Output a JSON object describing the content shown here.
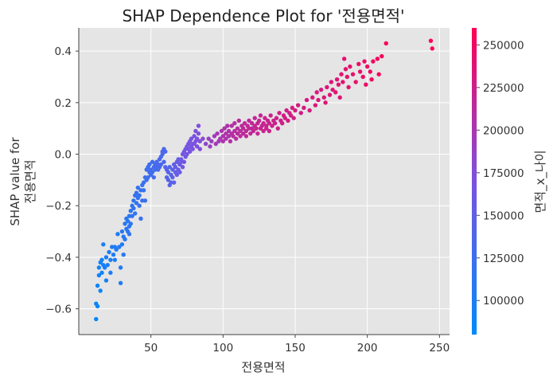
{
  "chart_data": {
    "type": "scatter",
    "title": "SHAP Dependence Plot for '전용면적'",
    "xlabel": "전용면적",
    "ylabel_lines": [
      "SHAP value for",
      "전용면적"
    ],
    "xlim": [
      0,
      257
    ],
    "ylim": [
      -0.7,
      0.49
    ],
    "x_ticks": [
      50,
      100,
      150,
      200,
      250
    ],
    "y_ticks": [
      {
        "value": 0.4,
        "label": "0.4"
      },
      {
        "value": 0.2,
        "label": "0.2"
      },
      {
        "value": 0.0,
        "label": "0.0"
      },
      {
        "value": -0.2,
        "label": "−0.2"
      },
      {
        "value": -0.4,
        "label": "−0.4"
      },
      {
        "value": -0.6,
        "label": "−0.6"
      }
    ],
    "colorbar": {
      "label": "면적_x_나이",
      "range": [
        80000,
        260000
      ],
      "ticks": [
        100000,
        125000,
        150000,
        175000,
        200000,
        225000,
        250000
      ],
      "colors": [
        "#008afb",
        "#7c52e0",
        "#ff0052"
      ]
    },
    "point_color": {
      "low": "#008afb",
      "mid": "#7c52e0",
      "high": "#ff0052"
    },
    "grid": true,
    "background": "#e5e5e5",
    "points": [
      [
        12,
        -0.64,
        85000
      ],
      [
        12,
        -0.58,
        87000
      ],
      [
        13,
        -0.59,
        88000
      ],
      [
        13,
        -0.51,
        90000
      ],
      [
        14,
        -0.47,
        91000
      ],
      [
        14,
        -0.44,
        92000
      ],
      [
        15,
        -0.42,
        92000
      ],
      [
        15,
        -0.53,
        93000
      ],
      [
        16,
        -0.46,
        94000
      ],
      [
        16,
        -0.41,
        95000
      ],
      [
        17,
        -0.35,
        96000
      ],
      [
        17,
        -0.43,
        96000
      ],
      [
        18,
        -0.44,
        97000
      ],
      [
        19,
        -0.4,
        98000
      ],
      [
        19,
        -0.49,
        98000
      ],
      [
        20,
        -0.43,
        99000
      ],
      [
        21,
        -0.38,
        100000
      ],
      [
        22,
        -0.41,
        100000
      ],
      [
        22,
        -0.46,
        101000
      ],
      [
        23,
        -0.36,
        102000
      ],
      [
        24,
        -0.39,
        102000
      ],
      [
        25,
        -0.36,
        103000
      ],
      [
        25,
        -0.41,
        103000
      ],
      [
        26,
        -0.37,
        104000
      ],
      [
        27,
        -0.31,
        105000
      ],
      [
        28,
        -0.36,
        105000
      ],
      [
        29,
        -0.44,
        106000
      ],
      [
        29,
        -0.5,
        106000
      ],
      [
        30,
        -0.35,
        107000
      ],
      [
        30,
        -0.3,
        107000
      ],
      [
        31,
        -0.32,
        108000
      ],
      [
        31,
        -0.39,
        108000
      ],
      [
        32,
        -0.27,
        109000
      ],
      [
        32,
        -0.33,
        109000
      ],
      [
        33,
        -0.29,
        110000
      ],
      [
        33,
        -0.25,
        110000
      ],
      [
        34,
        -0.3,
        111000
      ],
      [
        34,
        -0.26,
        111000
      ],
      [
        35,
        -0.24,
        112000
      ],
      [
        35,
        -0.28,
        112000
      ],
      [
        35,
        -0.31,
        112000
      ],
      [
        36,
        -0.22,
        113000
      ],
      [
        36,
        -0.27,
        113000
      ],
      [
        37,
        -0.2,
        114000
      ],
      [
        37,
        -0.24,
        114000
      ],
      [
        38,
        -0.21,
        115000
      ],
      [
        38,
        -0.18,
        115000
      ],
      [
        39,
        -0.16,
        116000
      ],
      [
        39,
        -0.23,
        116000
      ],
      [
        40,
        -0.19,
        117000
      ],
      [
        40,
        -0.15,
        117000
      ],
      [
        41,
        -0.17,
        118000
      ],
      [
        41,
        -0.13,
        118000
      ],
      [
        42,
        -0.2,
        119000
      ],
      [
        42,
        -0.16,
        119000
      ],
      [
        43,
        -0.14,
        120000
      ],
      [
        43,
        -0.25,
        120000
      ],
      [
        44,
        -0.12,
        121000
      ],
      [
        44,
        -0.18,
        121000
      ],
      [
        45,
        -0.14,
        122000
      ],
      [
        45,
        -0.11,
        122000
      ],
      [
        46,
        -0.09,
        123000
      ],
      [
        46,
        -0.18,
        123000
      ],
      [
        47,
        -0.06,
        124000
      ],
      [
        47,
        -0.1,
        124000
      ],
      [
        48,
        -0.05,
        125000
      ],
      [
        48,
        -0.09,
        125000
      ],
      [
        49,
        -0.07,
        126000
      ],
      [
        49,
        -0.04,
        126000
      ],
      [
        50,
        -0.06,
        127000
      ],
      [
        50,
        -0.08,
        127000
      ],
      [
        51,
        -0.03,
        128000
      ],
      [
        51,
        -0.07,
        128000
      ],
      [
        52,
        -0.05,
        129000
      ],
      [
        52,
        -0.09,
        129000
      ],
      [
        53,
        -0.04,
        130000
      ],
      [
        53,
        -0.06,
        130000
      ],
      [
        54,
        -0.05,
        131000
      ],
      [
        54,
        -0.03,
        131000
      ],
      [
        55,
        -0.04,
        132000
      ],
      [
        55,
        -0.06,
        132000
      ],
      [
        56,
        -0.02,
        133000
      ],
      [
        56,
        -0.05,
        133000
      ],
      [
        57,
        -0.01,
        134000
      ],
      [
        57,
        -0.04,
        134000
      ],
      [
        58,
        0.0,
        135000
      ],
      [
        58,
        0.01,
        135000
      ],
      [
        59,
        0.02,
        136000
      ],
      [
        59,
        -0.03,
        136000
      ],
      [
        60,
        -0.05,
        137000
      ],
      [
        60,
        0.01,
        137000
      ],
      [
        61,
        -0.06,
        139000
      ],
      [
        61,
        -0.09,
        139000
      ],
      [
        62,
        -0.07,
        141000
      ],
      [
        62,
        -0.1,
        141000
      ],
      [
        63,
        -0.05,
        143000
      ],
      [
        63,
        -0.12,
        143000
      ],
      [
        64,
        -0.08,
        145000
      ],
      [
        64,
        -0.11,
        145000
      ],
      [
        65,
        -0.06,
        147000
      ],
      [
        65,
        -0.09,
        147000
      ],
      [
        66,
        -0.04,
        149000
      ],
      [
        66,
        -0.11,
        149000
      ],
      [
        67,
        -0.07,
        151000
      ],
      [
        67,
        -0.05,
        151000
      ],
      [
        68,
        -0.03,
        153000
      ],
      [
        68,
        -0.08,
        153000
      ],
      [
        69,
        -0.06,
        155000
      ],
      [
        69,
        -0.02,
        155000
      ],
      [
        70,
        -0.04,
        157000
      ],
      [
        70,
        -0.07,
        157000
      ],
      [
        71,
        -0.02,
        159000
      ],
      [
        71,
        -0.03,
        159000
      ],
      [
        72,
        0.0,
        161000
      ],
      [
        72,
        -0.05,
        161000
      ],
      [
        73,
        0.01,
        163000
      ],
      [
        73,
        -0.03,
        163000
      ],
      [
        74,
        0.02,
        164000
      ],
      [
        74,
        -0.01,
        164000
      ],
      [
        75,
        0.03,
        165000
      ],
      [
        75,
        0.0,
        165000
      ],
      [
        76,
        0.02,
        166000
      ],
      [
        76,
        0.04,
        166000
      ],
      [
        77,
        0.01,
        167000
      ],
      [
        77,
        0.05,
        167000
      ],
      [
        78,
        0.03,
        168000
      ],
      [
        78,
        0.06,
        168000
      ],
      [
        79,
        0.04,
        169000
      ],
      [
        79,
        0.02,
        169000
      ],
      [
        80,
        0.07,
        170000
      ],
      [
        80,
        0.04,
        170000
      ],
      [
        81,
        0.05,
        171000
      ],
      [
        81,
        0.09,
        171000
      ],
      [
        82,
        0.06,
        172000
      ],
      [
        82,
        0.03,
        172000
      ],
      [
        83,
        0.08,
        173000
      ],
      [
        83,
        0.11,
        173000
      ],
      [
        84,
        0.05,
        174000
      ],
      [
        84,
        0.02,
        174000
      ],
      [
        86,
        0.06,
        180000
      ],
      [
        88,
        0.04,
        184000
      ],
      [
        90,
        0.06,
        187000
      ],
      [
        91,
        0.03,
        189000
      ],
      [
        92,
        0.05,
        191000
      ],
      [
        94,
        0.07,
        194000
      ],
      [
        95,
        0.04,
        196000
      ],
      [
        96,
        0.08,
        198000
      ],
      [
        97,
        0.05,
        199000
      ],
      [
        98,
        0.06,
        200000
      ],
      [
        99,
        0.09,
        201000
      ],
      [
        100,
        0.07,
        202000
      ],
      [
        100,
        0.05,
        202000
      ],
      [
        101,
        0.1,
        203000
      ],
      [
        102,
        0.06,
        204000
      ],
      [
        102,
        0.08,
        204000
      ],
      [
        103,
        0.11,
        205000
      ],
      [
        104,
        0.07,
        206000
      ],
      [
        104,
        0.09,
        206000
      ],
      [
        105,
        0.05,
        207000
      ],
      [
        106,
        0.08,
        208000
      ],
      [
        106,
        0.11,
        208000
      ],
      [
        107,
        0.07,
        209000
      ],
      [
        108,
        0.12,
        210000
      ],
      [
        108,
        0.09,
        210000
      ],
      [
        109,
        0.06,
        211000
      ],
      [
        110,
        0.1,
        212000
      ],
      [
        110,
        0.08,
        212000
      ],
      [
        111,
        0.13,
        213000
      ],
      [
        112,
        0.09,
        213000
      ],
      [
        112,
        0.07,
        213000
      ],
      [
        113,
        0.11,
        214000
      ],
      [
        114,
        0.08,
        214000
      ],
      [
        114,
        0.1,
        214000
      ],
      [
        115,
        0.12,
        215000
      ],
      [
        116,
        0.09,
        215000
      ],
      [
        116,
        0.07,
        215000
      ],
      [
        117,
        0.11,
        216000
      ],
      [
        118,
        0.1,
        216000
      ],
      [
        118,
        0.13,
        216000
      ],
      [
        119,
        0.08,
        217000
      ],
      [
        120,
        0.12,
        217000
      ],
      [
        120,
        0.1,
        217000
      ],
      [
        121,
        0.09,
        218000
      ],
      [
        122,
        0.11,
        218000
      ],
      [
        122,
        0.14,
        218000
      ],
      [
        123,
        0.1,
        219000
      ],
      [
        124,
        0.12,
        219000
      ],
      [
        124,
        0.08,
        219000
      ],
      [
        125,
        0.13,
        220000
      ],
      [
        126,
        0.1,
        220000
      ],
      [
        126,
        0.15,
        220000
      ],
      [
        127,
        0.11,
        221000
      ],
      [
        128,
        0.09,
        221000
      ],
      [
        128,
        0.12,
        221000
      ],
      [
        129,
        0.14,
        222000
      ],
      [
        130,
        0.11,
        222000
      ],
      [
        130,
        0.1,
        222000
      ],
      [
        131,
        0.13,
        223000
      ],
      [
        132,
        0.12,
        223000
      ],
      [
        132,
        0.09,
        223000
      ],
      [
        133,
        0.15,
        224000
      ],
      [
        134,
        0.11,
        224000
      ],
      [
        135,
        0.13,
        224000
      ],
      [
        136,
        0.12,
        225000
      ],
      [
        137,
        0.14,
        225000
      ],
      [
        138,
        0.1,
        225000
      ],
      [
        139,
        0.16,
        226000
      ],
      [
        140,
        0.13,
        226000
      ],
      [
        141,
        0.12,
        226000
      ],
      [
        142,
        0.15,
        227000
      ],
      [
        143,
        0.14,
        227000
      ],
      [
        144,
        0.17,
        227000
      ],
      [
        145,
        0.13,
        228000
      ],
      [
        146,
        0.16,
        228000
      ],
      [
        147,
        0.15,
        228000
      ],
      [
        148,
        0.18,
        229000
      ],
      [
        149,
        0.14,
        229000
      ],
      [
        150,
        0.17,
        229000
      ],
      [
        152,
        0.19,
        230000
      ],
      [
        154,
        0.16,
        230000
      ],
      [
        156,
        0.18,
        231000
      ],
      [
        158,
        0.21,
        231000
      ],
      [
        160,
        0.17,
        232000
      ],
      [
        162,
        0.22,
        232000
      ],
      [
        164,
        0.19,
        233000
      ],
      [
        165,
        0.24,
        233000
      ],
      [
        166,
        0.21,
        234000
      ],
      [
        168,
        0.25,
        234000
      ],
      [
        170,
        0.22,
        235000
      ],
      [
        171,
        0.2,
        235000
      ],
      [
        172,
        0.26,
        236000
      ],
      [
        174,
        0.23,
        236000
      ],
      [
        175,
        0.28,
        237000
      ],
      [
        176,
        0.25,
        237000
      ],
      [
        178,
        0.24,
        238000
      ],
      [
        179,
        0.29,
        238000
      ],
      [
        180,
        0.27,
        239000
      ],
      [
        181,
        0.22,
        239000
      ],
      [
        182,
        0.31,
        240000
      ],
      [
        183,
        0.28,
        240000
      ],
      [
        184,
        0.37,
        241000
      ],
      [
        185,
        0.33,
        241000
      ],
      [
        186,
        0.3,
        242000
      ],
      [
        187,
        0.26,
        242000
      ],
      [
        188,
        0.34,
        243000
      ],
      [
        190,
        0.31,
        244000
      ],
      [
        192,
        0.28,
        245000
      ],
      [
        194,
        0.35,
        246000
      ],
      [
        195,
        0.32,
        247000
      ],
      [
        197,
        0.3,
        248000
      ],
      [
        198,
        0.36,
        248000
      ],
      [
        199,
        0.27,
        249000
      ],
      [
        200,
        0.34,
        249000
      ],
      [
        202,
        0.32,
        250000
      ],
      [
        203,
        0.29,
        250000
      ],
      [
        204,
        0.36,
        251000
      ],
      [
        207,
        0.37,
        252000
      ],
      [
        208,
        0.31,
        253000
      ],
      [
        210,
        0.38,
        254000
      ],
      [
        213,
        0.43,
        255000
      ],
      [
        244,
        0.44,
        258000
      ],
      [
        245,
        0.41,
        259000
      ]
    ]
  }
}
